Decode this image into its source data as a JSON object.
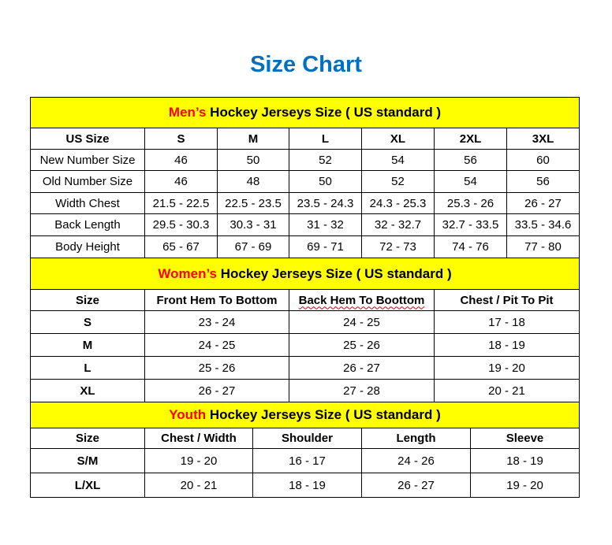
{
  "title": "Size Chart",
  "colors": {
    "title": "#0070c0",
    "header_bg": "#ffff00",
    "highlight": "#ff0000"
  },
  "sections": [
    {
      "id": "men",
      "header_highlight": "Men’s",
      "header_rest": " Hockey Jerseys Size ( US standard )",
      "columns": [
        "US Size",
        "S",
        "M",
        "L",
        "XL",
        "2XL",
        "3XL"
      ],
      "rows": [
        [
          "New Number Size",
          "46",
          "50",
          "52",
          "54",
          "56",
          "60"
        ],
        [
          "Old Number Size",
          "46",
          "48",
          "50",
          "52",
          "54",
          "56"
        ],
        [
          "Width Chest",
          "21.5 - 22.5",
          "22.5 - 23.5",
          "23.5 - 24.3",
          "24.3 - 25.3",
          "25.3 - 26",
          "26 - 27"
        ],
        [
          "Back Length",
          "29.5 - 30.3",
          "30.3 - 31",
          "31 - 32",
          "32 - 32.7",
          "32.7 - 33.5",
          "33.5 - 34.6"
        ],
        [
          "Body Height",
          "65 - 67",
          "67 - 69",
          "69 - 71",
          "72 - 73",
          "74 - 76",
          "77 - 80"
        ]
      ]
    },
    {
      "id": "women",
      "header_highlight": "Women’s",
      "header_rest": " Hockey Jerseys Size ( US standard )",
      "columns": [
        "Size",
        "Front Hem To Bottom",
        "Back Hem To Boottom",
        "Chest / Pit To Pit"
      ],
      "rows": [
        [
          "S",
          "23 - 24",
          "24 - 25",
          "17 - 18"
        ],
        [
          "M",
          "24 - 25",
          "25 - 26",
          "18 - 19"
        ],
        [
          "L",
          "25 - 26",
          "26 - 27",
          "19 - 20"
        ],
        [
          "XL",
          "26 - 27",
          "27 - 28",
          "20 - 21"
        ]
      ]
    },
    {
      "id": "youth",
      "header_highlight": "Youth",
      "header_rest": " Hockey Jerseys Size ( US standard )",
      "columns": [
        "Size",
        "Chest / Width",
        "Shoulder",
        "Length",
        "Sleeve"
      ],
      "rows": [
        [
          "S/M",
          "19 - 20",
          "16 - 17",
          "24 - 26",
          "18 - 19"
        ],
        [
          "L/XL",
          "20 - 21",
          "18 - 19",
          "26 - 27",
          "19 - 20"
        ]
      ]
    }
  ]
}
